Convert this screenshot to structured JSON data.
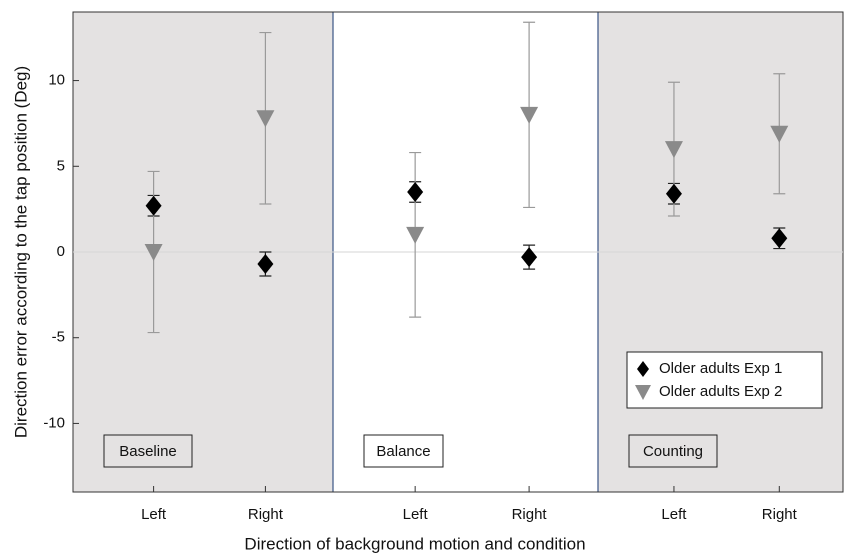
{
  "chart_data": {
    "type": "errorbar",
    "xlabel": "Direction of background motion and condition",
    "ylabel": "Direction error according to the tap position (Deg)",
    "categories": [
      "Left",
      "Right",
      "Left",
      "Right",
      "Left",
      "Right"
    ],
    "groups": [
      {
        "label": "Baseline",
        "background": "#e4e2e2"
      },
      {
        "label": "Balance",
        "background": "#ffffff"
      },
      {
        "label": "Counting",
        "background": "#e4e2e2"
      }
    ],
    "ylim": [
      -14,
      14
    ],
    "yticks": [
      -10,
      -5,
      0,
      5,
      10
    ],
    "legend": "lower right",
    "series": [
      {
        "name": "Older adults Exp 1",
        "color": "#000000",
        "marker": "diamond",
        "values": [
          2.7,
          -0.7,
          3.5,
          -0.3,
          3.4,
          0.8
        ],
        "errors": [
          0.6,
          0.7,
          0.6,
          0.7,
          0.6,
          0.6
        ]
      },
      {
        "name": "Older adults Exp 2",
        "color": "#8a8a8a",
        "marker": "triangle-down",
        "values": [
          0.0,
          7.8,
          1.0,
          8.0,
          6.0,
          6.9
        ],
        "errors": [
          4.7,
          5.0,
          4.8,
          5.4,
          3.9,
          3.5
        ]
      }
    ]
  }
}
